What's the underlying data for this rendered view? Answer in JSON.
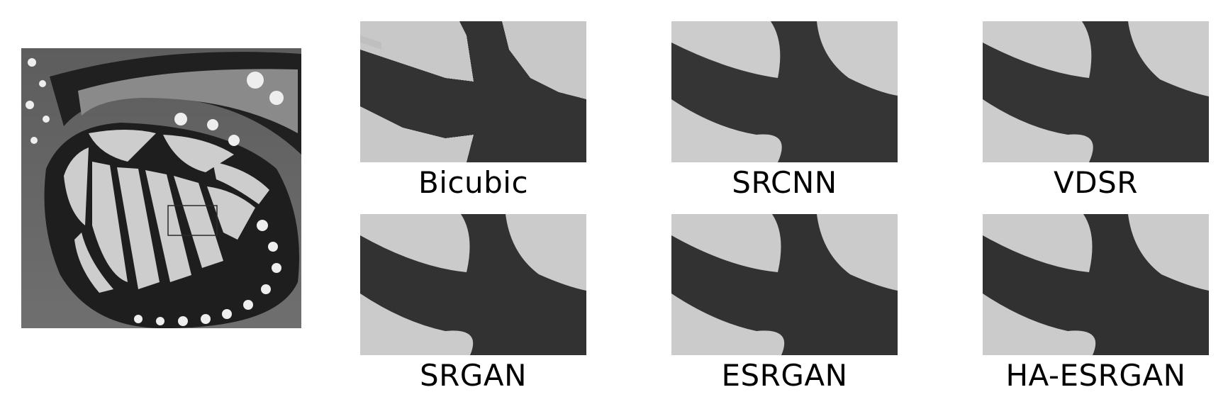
{
  "overview": {
    "description_icon": "butterfly-wing-photo"
  },
  "panels": [
    {
      "key": "bicubic",
      "label": "Bicubic"
    },
    {
      "key": "srcnn",
      "label": "SRCNN"
    },
    {
      "key": "vdsr",
      "label": "VDSR"
    },
    {
      "key": "srgan",
      "label": "SRGAN"
    },
    {
      "key": "esrgan",
      "label": "ESRGAN"
    },
    {
      "key": "ha-esrgan",
      "label": "HA-ESRGAN"
    }
  ]
}
